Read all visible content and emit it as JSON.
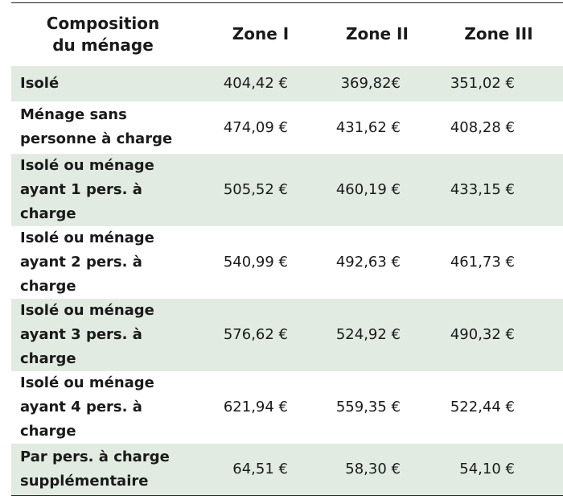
{
  "header": {
    "composition": "Composition\ndu ménage",
    "zones": [
      "Zone I",
      "Zone II",
      "Zone III"
    ]
  },
  "rows": [
    {
      "label": "Isolé",
      "values": [
        "404,42 €",
        "369,82€",
        "351,02 €"
      ]
    },
    {
      "label": "Ménage sans\npersonne à charge",
      "values": [
        "474,09 €",
        "431,62 €",
        "408,28 €"
      ]
    },
    {
      "label": "Isolé ou ménage\nayant 1 pers. à charge",
      "values": [
        "505,52 €",
        "460,19 €",
        "433,15 €"
      ]
    },
    {
      "label": "Isolé ou ménage\nayant 2 pers. à charge",
      "values": [
        "540,99 €",
        "492,63 €",
        "461,73 €"
      ]
    },
    {
      "label": "Isolé ou ménage\nayant 3 pers. à charge",
      "values": [
        "576,62 €",
        "524,92 €",
        "490,32 €"
      ]
    },
    {
      "label": "Isolé ou ménage\nayant 4 pers. à charge",
      "values": [
        "621,94 €",
        "559,35 €",
        "522,44 €"
      ]
    },
    {
      "label": "Par pers. à charge\nsupplémentaire",
      "values": [
        "64,51 €",
        "58,30 €",
        "54,10 €"
      ]
    }
  ],
  "colors": {
    "shaded_row": "#e2ebe2",
    "rule": "#222222"
  }
}
